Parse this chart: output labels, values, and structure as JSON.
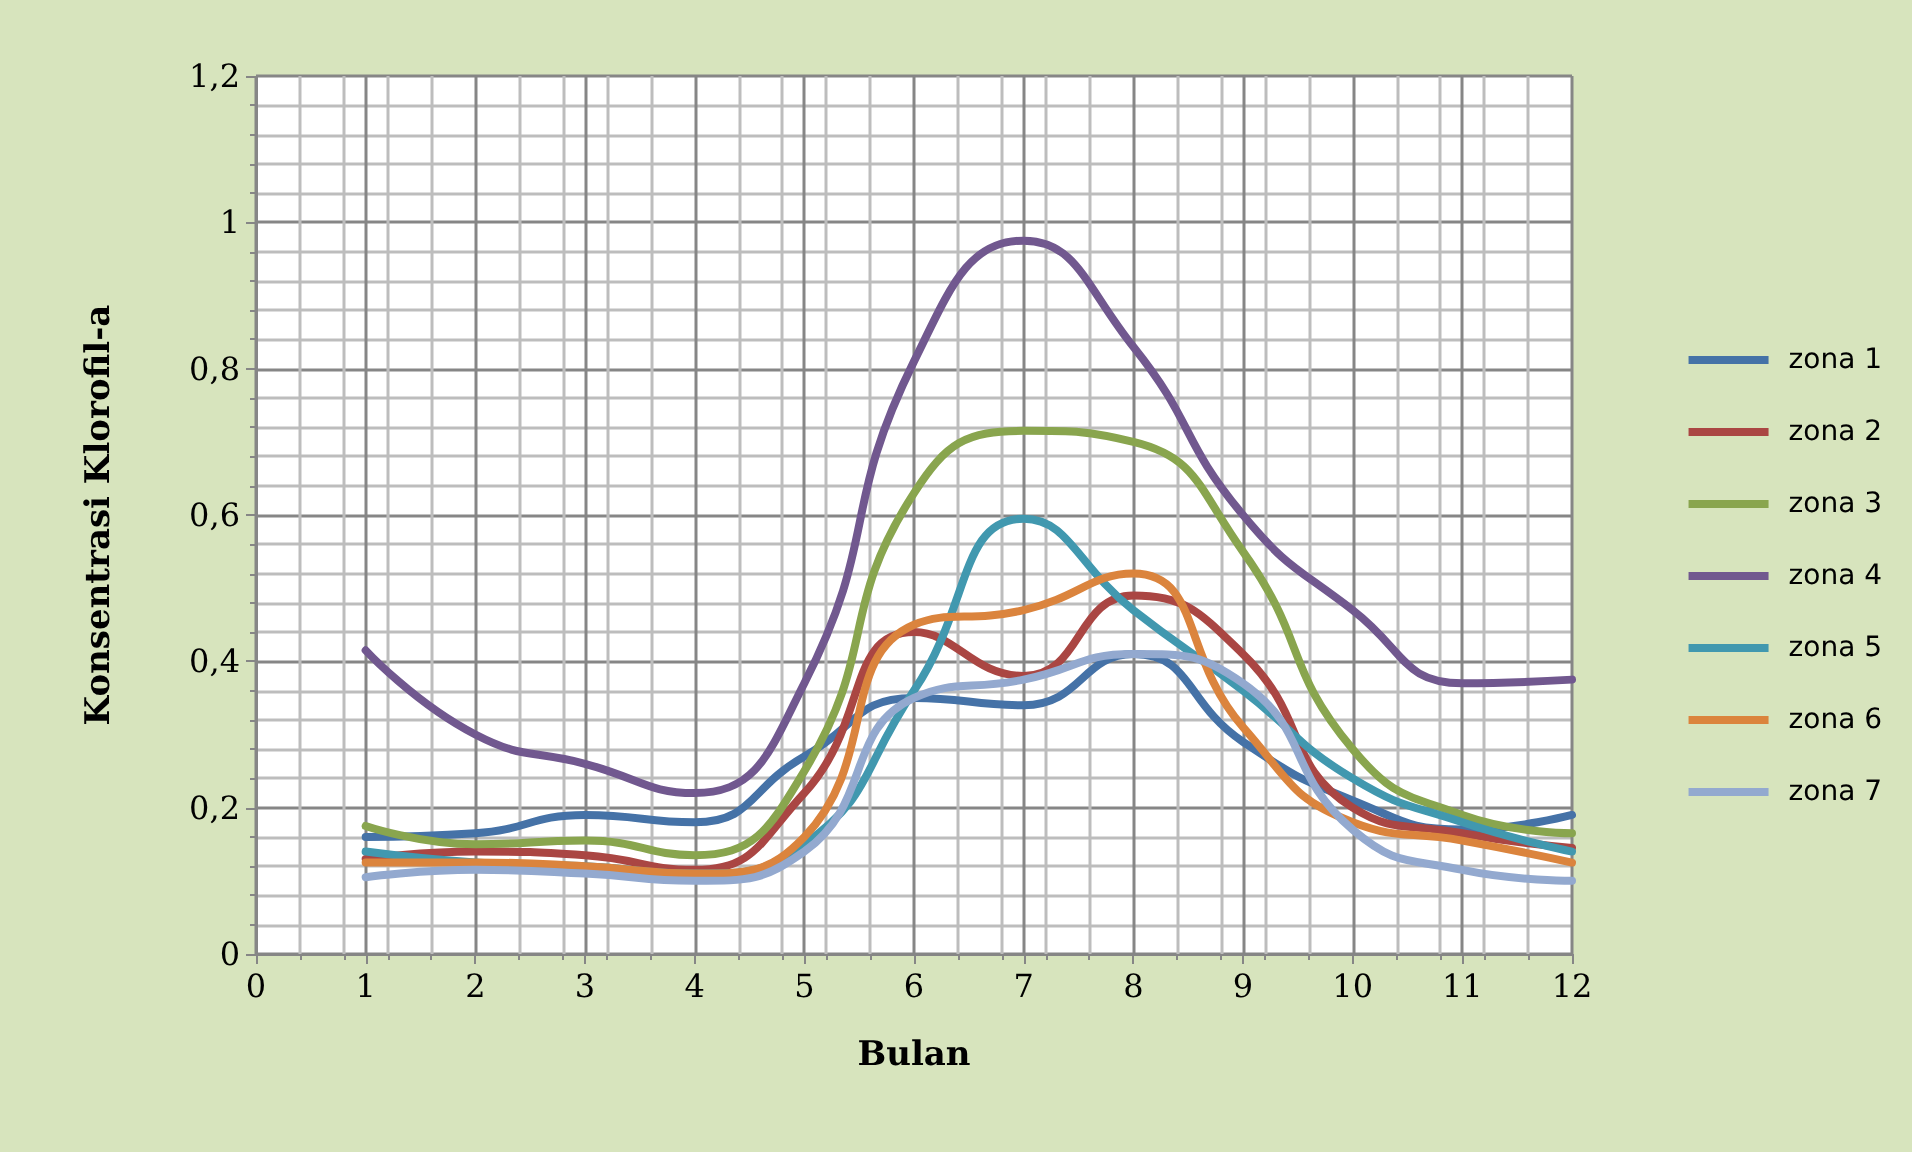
{
  "chart_data": {
    "type": "line",
    "xlabel": "Bulan",
    "ylabel": "Konsentrasi Klorofil-a",
    "x": [
      1,
      2,
      3,
      4,
      5,
      6,
      7,
      8,
      9,
      10,
      11,
      12
    ],
    "xlim": [
      0,
      12
    ],
    "xticks": [
      0,
      1,
      2,
      3,
      4,
      5,
      6,
      7,
      8,
      9,
      10,
      11,
      12
    ],
    "ylim": [
      0,
      1.2
    ],
    "yticks": [
      {
        "value": 0,
        "label": "0"
      },
      {
        "value": 0.2,
        "label": "0,2"
      },
      {
        "value": 0.4,
        "label": "0,4"
      },
      {
        "value": 0.6,
        "label": "0,6"
      },
      {
        "value": 0.8,
        "label": "0,8"
      },
      {
        "value": 1,
        "label": "1"
      },
      {
        "value": 1.2,
        "label": "1,2"
      }
    ],
    "grid": true,
    "legend": "right",
    "marker": "none",
    "line_style": "solid",
    "series": [
      {
        "name": "zona 1",
        "color": "#4572a7",
        "values": [
          0.16,
          0.165,
          0.19,
          0.18,
          0.27,
          0.35,
          0.34,
          0.41,
          0.29,
          0.21,
          0.17,
          0.19
        ]
      },
      {
        "name": "zona 2",
        "color": "#aa4643",
        "values": [
          0.13,
          0.14,
          0.135,
          0.115,
          0.22,
          0.44,
          0.38,
          0.49,
          0.41,
          0.2,
          0.165,
          0.145
        ]
      },
      {
        "name": "zona 3",
        "color": "#89a54e",
        "values": [
          0.175,
          0.15,
          0.155,
          0.135,
          0.25,
          0.63,
          0.715,
          0.7,
          0.55,
          0.28,
          0.19,
          0.165
        ]
      },
      {
        "name": "zona 4",
        "color": "#71588f",
        "values": [
          0.415,
          0.3,
          0.26,
          0.22,
          0.37,
          0.81,
          0.975,
          0.83,
          0.6,
          0.47,
          0.37,
          0.375
        ]
      },
      {
        "name": "zona 5",
        "color": "#4198af",
        "values": [
          0.14,
          0.125,
          0.12,
          0.11,
          0.15,
          0.36,
          0.595,
          0.47,
          0.36,
          0.24,
          0.18,
          0.14
        ]
      },
      {
        "name": "zona 6",
        "color": "#db843d",
        "values": [
          0.125,
          0.125,
          0.12,
          0.11,
          0.16,
          0.45,
          0.47,
          0.52,
          0.31,
          0.18,
          0.155,
          0.125
        ]
      },
      {
        "name": "zona 7",
        "color": "#93a9cf",
        "values": [
          0.105,
          0.115,
          0.11,
          0.1,
          0.14,
          0.35,
          0.375,
          0.41,
          0.37,
          0.17,
          0.115,
          0.1
        ]
      }
    ]
  }
}
